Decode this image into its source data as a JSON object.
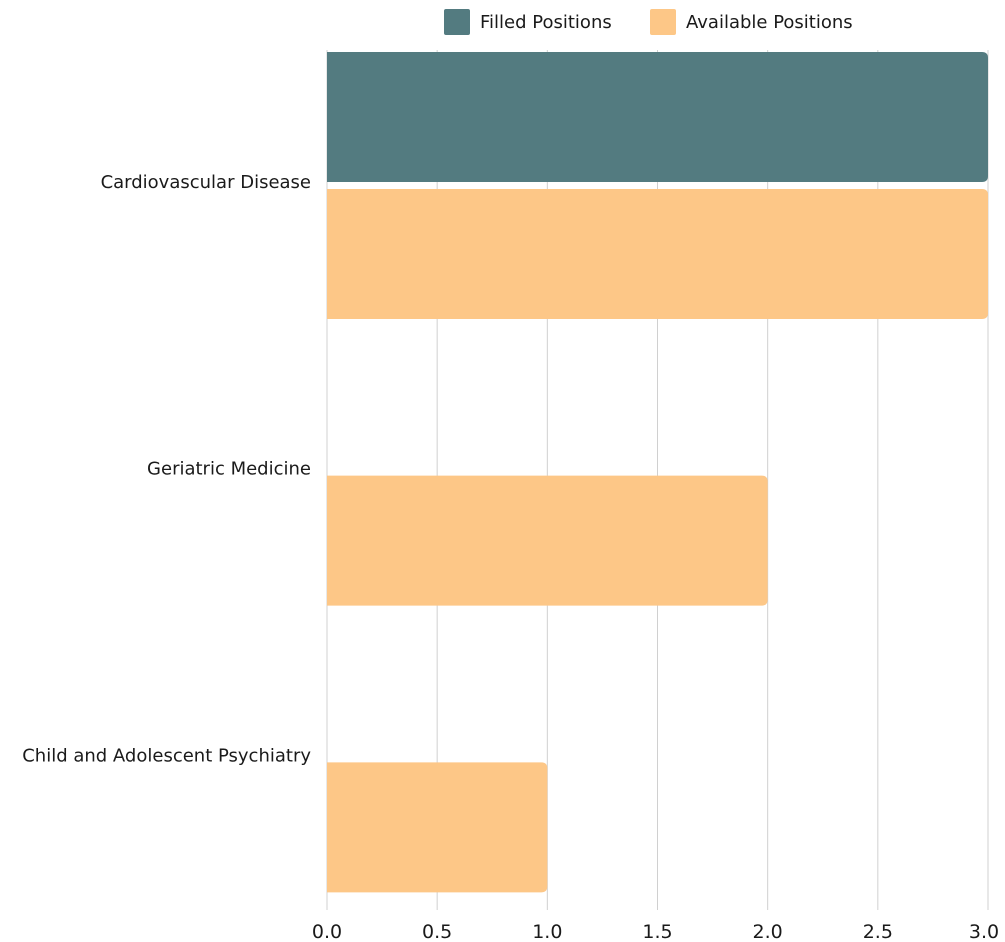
{
  "chart_data": {
    "type": "bar",
    "orientation": "horizontal",
    "title": "",
    "xlabel": "",
    "ylabel": "",
    "categories": [
      "Cardiovascular Disease",
      "Geriatric Medicine",
      "Child and Adolescent Psychiatry"
    ],
    "series": [
      {
        "name": "Filled Positions",
        "values": [
          3,
          0,
          0
        ],
        "color": "#537b80"
      },
      {
        "name": "Available Positions",
        "values": [
          3,
          2,
          1
        ],
        "color": "#fdc787"
      }
    ],
    "xlim": [
      0,
      3
    ],
    "xticks": [
      "0.0",
      "0.5",
      "1.0",
      "1.5",
      "2.0",
      "2.5",
      "3.0"
    ],
    "grid": "vertical",
    "legend_position": "top"
  }
}
